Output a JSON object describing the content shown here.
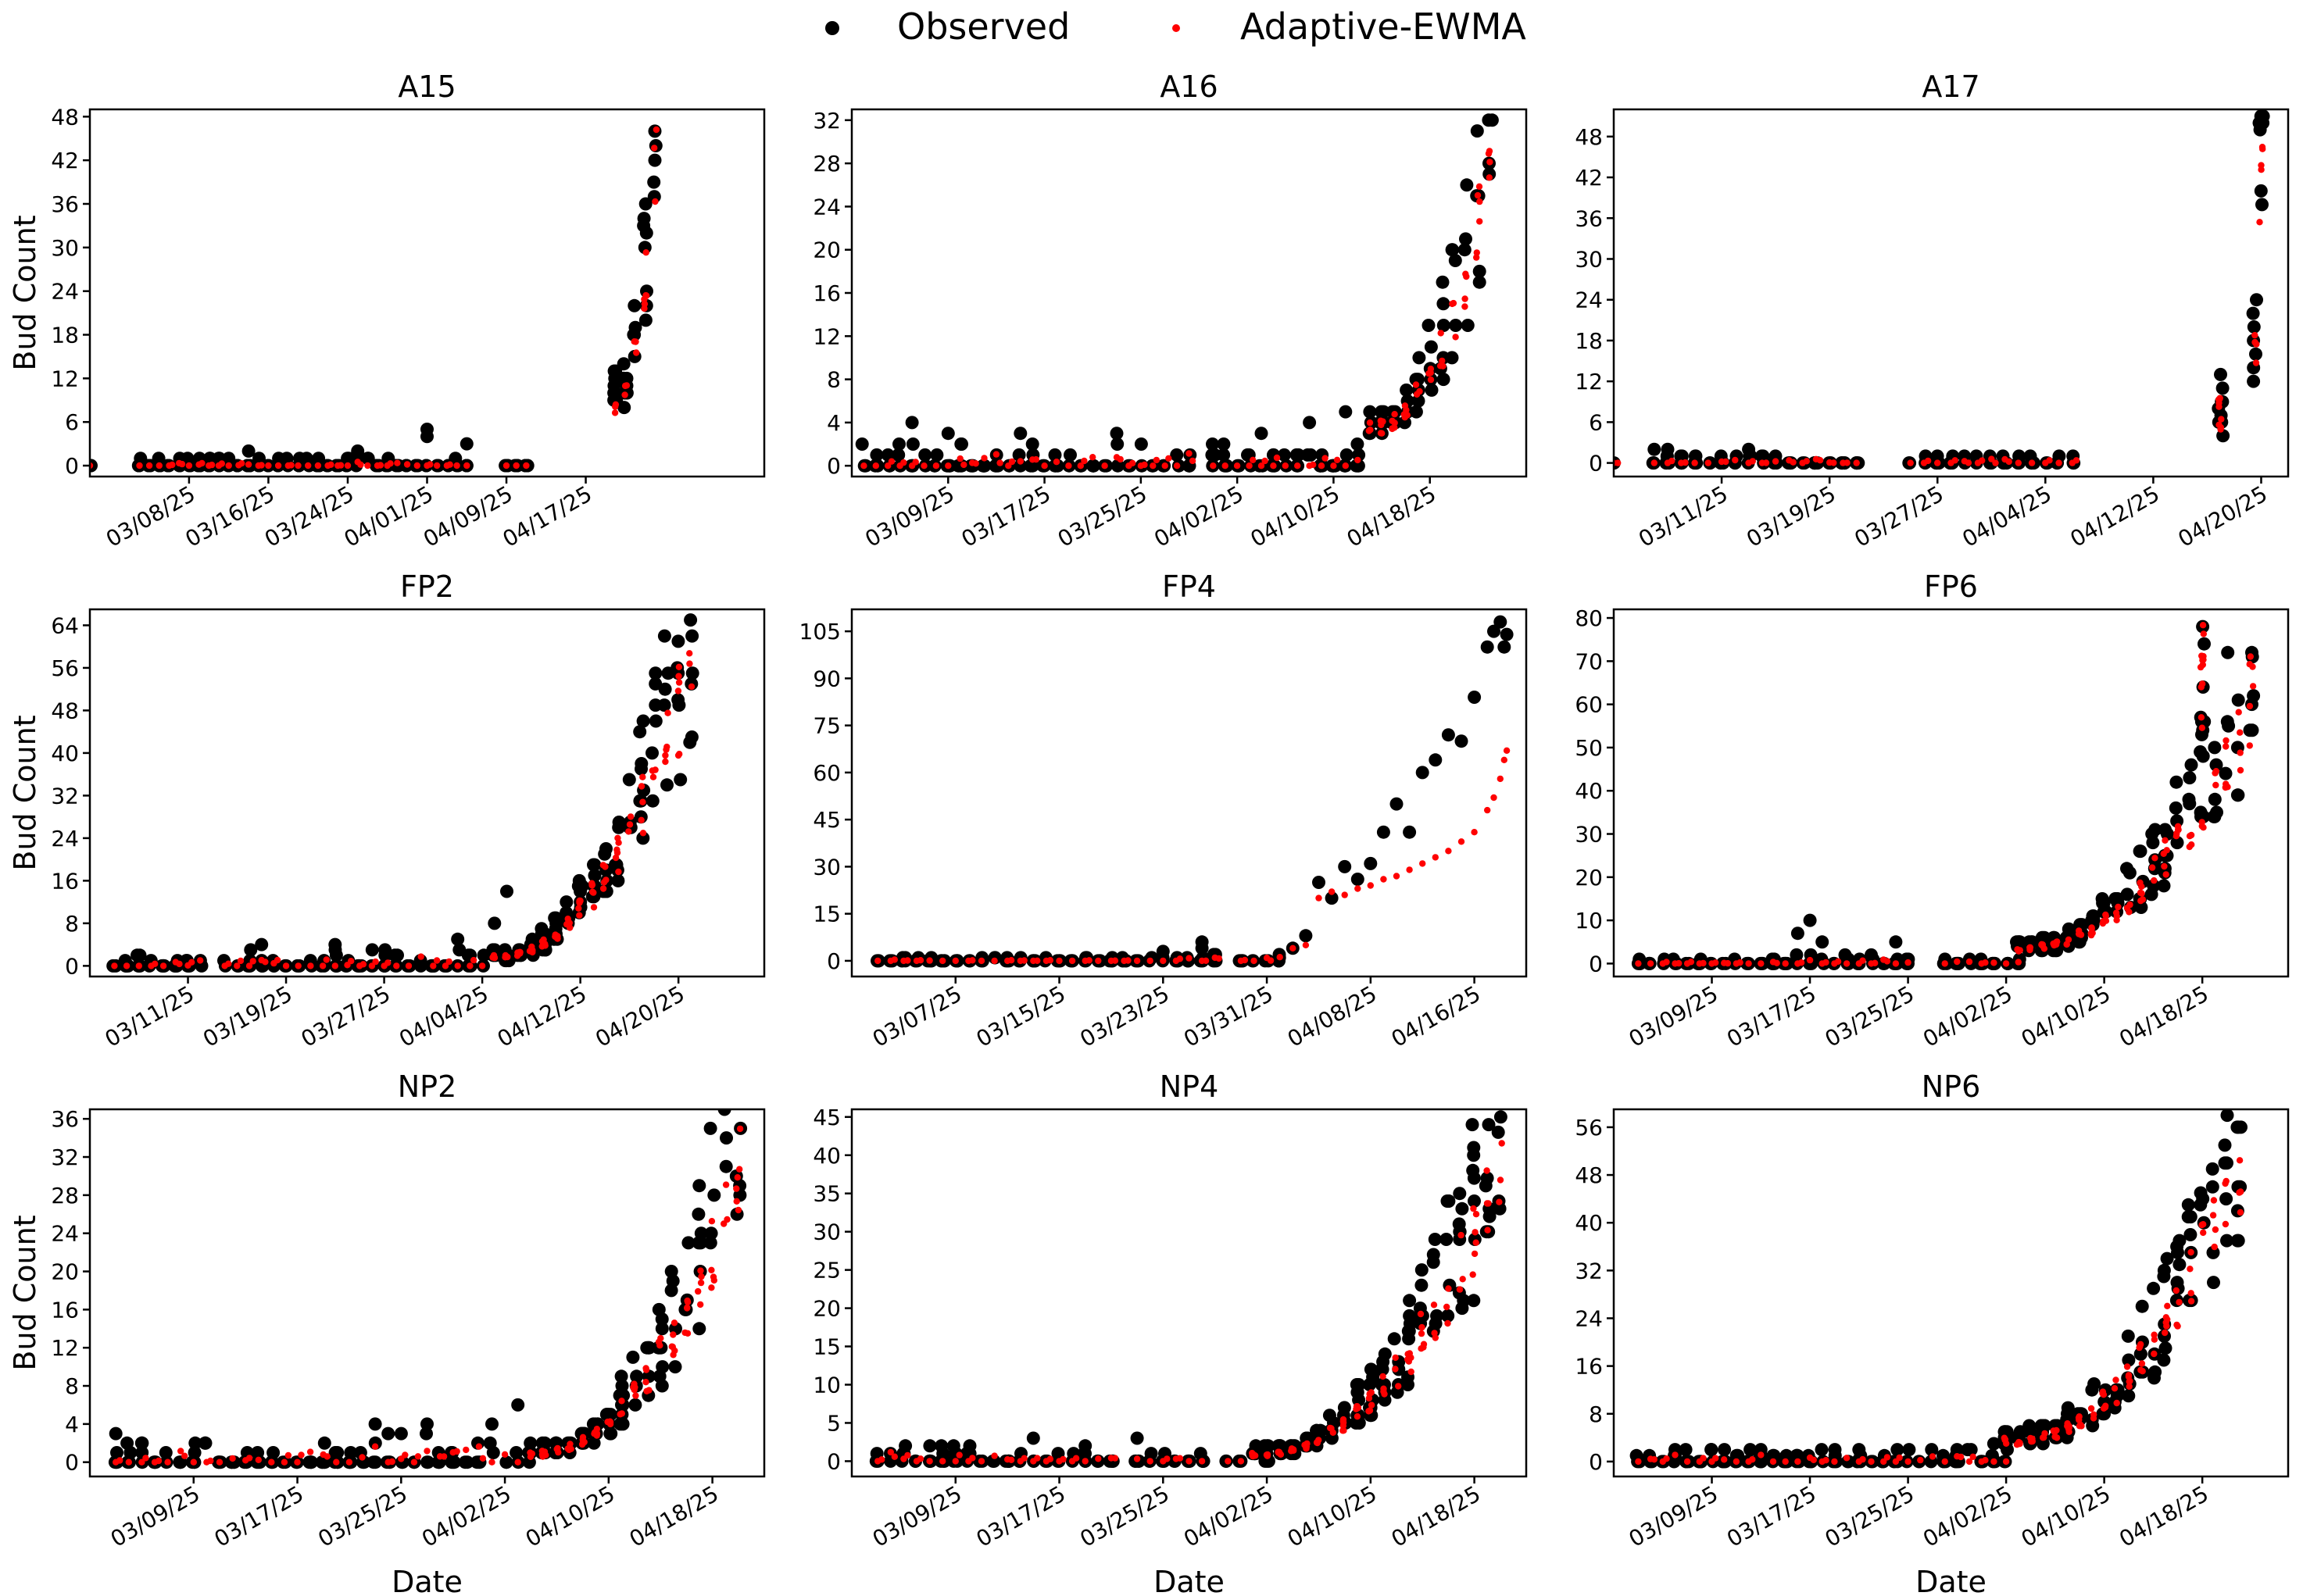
{
  "legend": {
    "observed": "Observed",
    "adaptive": "Adaptive-EWMA"
  },
  "colors": {
    "observed": "#000000",
    "adaptive": "#ff0000"
  },
  "chart_data": [
    {
      "type": "scatter",
      "title": "A15",
      "ylabel": "Bud Count",
      "xlabel": "",
      "ylim": [
        -1.5,
        49
      ],
      "yticks": [
        0,
        6,
        12,
        18,
        24,
        30,
        36,
        42,
        48
      ],
      "xlim": [
        0,
        68
      ],
      "xticks": [
        10,
        18,
        26,
        34,
        42,
        50
      ],
      "xtick_labels": [
        "03/08/25",
        "03/16/25",
        "03/24/25",
        "04/01/25",
        "04/09/25",
        "04/17/25"
      ],
      "segments": [
        [
          0,
          0,
          0,
          0,
          1
        ],
        [
          5,
          33,
          0,
          1,
          0.4
        ],
        [
          34,
          38,
          0,
          1,
          0.3
        ],
        [
          42,
          44,
          0,
          0,
          1
        ]
      ],
      "extra_observed": [
        [
          16,
          2
        ],
        [
          27,
          2
        ],
        [
          34,
          5
        ],
        [
          34,
          4
        ],
        [
          38,
          3
        ]
      ],
      "growth": [
        [
          53,
          57,
          10,
          46
        ]
      ]
    },
    {
      "type": "scatter",
      "title": "A16",
      "ylabel": "",
      "xlabel": "",
      "ylim": [
        -1,
        33
      ],
      "yticks": [
        0,
        4,
        8,
        12,
        16,
        20,
        24,
        28,
        32
      ],
      "xlim": [
        0,
        56
      ],
      "xticks": [
        8,
        16,
        24,
        32,
        40,
        48
      ],
      "xtick_labels": [
        "03/09/25",
        "03/17/25",
        "03/25/25",
        "04/02/25",
        "04/10/25",
        "04/18/25"
      ],
      "segments": [
        [
          1,
          28,
          0,
          2,
          1
        ],
        [
          30,
          42,
          0,
          2,
          1
        ]
      ],
      "extra_observed": [
        [
          5,
          4
        ],
        [
          8,
          3
        ],
        [
          14,
          3
        ],
        [
          22,
          3
        ],
        [
          34,
          3
        ],
        [
          38,
          4
        ],
        [
          41,
          5
        ]
      ],
      "growth": [
        [
          43,
          53,
          4,
          32
        ]
      ]
    },
    {
      "type": "scatter",
      "title": "A17",
      "ylabel": "",
      "xlabel": "",
      "ylim": [
        -2,
        52
      ],
      "yticks": [
        0,
        6,
        12,
        18,
        24,
        30,
        36,
        42,
        48
      ],
      "xlim": [
        0,
        50
      ],
      "xticks": [
        8,
        16,
        24,
        32,
        40,
        48
      ],
      "xtick_labels": [
        "03/11/25",
        "03/19/25",
        "03/27/25",
        "04/04/25",
        "04/12/25",
        "04/20/25"
      ],
      "segments": [
        [
          0,
          0,
          0,
          0,
          0
        ],
        [
          3,
          18,
          0,
          1,
          0.3
        ],
        [
          22,
          34,
          0,
          1,
          0.3
        ]
      ],
      "extra_observed": [
        [
          3,
          2
        ],
        [
          4,
          2
        ],
        [
          10,
          2
        ]
      ],
      "growth": [
        [
          45,
          45,
          7,
          11
        ],
        [
          47.5,
          48,
          19,
          50
        ]
      ]
    },
    {
      "type": "scatter",
      "title": "FP2",
      "ylabel": "Bud Count",
      "xlabel": "",
      "ylim": [
        -2,
        67
      ],
      "yticks": [
        0,
        8,
        16,
        24,
        32,
        40,
        48,
        56,
        64
      ],
      "xlim": [
        0,
        55
      ],
      "xticks": [
        8,
        16,
        24,
        32,
        40,
        48
      ],
      "xtick_labels": [
        "03/11/25",
        "03/19/25",
        "03/27/25",
        "04/04/25",
        "04/12/25",
        "04/20/25"
      ],
      "segments": [
        [
          2,
          9,
          0,
          2,
          1
        ],
        [
          11,
          32,
          0,
          3,
          1
        ]
      ],
      "extra_observed": [
        [
          14,
          4
        ],
        [
          20,
          4
        ],
        [
          30,
          5
        ],
        [
          34,
          14
        ],
        [
          33,
          8
        ]
      ],
      "growth": [
        [
          33,
          49,
          2,
          65
        ]
      ]
    },
    {
      "type": "scatter",
      "title": "FP4",
      "ylabel": "",
      "xlabel": "",
      "ylim": [
        -5,
        112
      ],
      "yticks": [
        0,
        15,
        30,
        45,
        60,
        75,
        90,
        105
      ],
      "xlim": [
        0,
        52
      ],
      "xticks": [
        8,
        16,
        24,
        32,
        40,
        48
      ],
      "xtick_labels": [
        "03/07/25",
        "03/15/25",
        "03/23/25",
        "03/31/25",
        "04/08/25",
        "04/16/25"
      ],
      "segments": [
        [
          2,
          20,
          0,
          1,
          0.8
        ],
        [
          21,
          28,
          0,
          2,
          0.6
        ],
        [
          30,
          33,
          0,
          2,
          0.6
        ]
      ],
      "extra_observed": [
        [
          27,
          4
        ],
        [
          27,
          6
        ],
        [
          24,
          3
        ]
      ],
      "fp4_pairs": [
        [
          34,
          4,
          4
        ],
        [
          35,
          8,
          5
        ],
        [
          36,
          25,
          20
        ],
        [
          37,
          20,
          22
        ],
        [
          38,
          30,
          21
        ],
        [
          39,
          26,
          23
        ],
        [
          40,
          31,
          24
        ],
        [
          41,
          41,
          26
        ],
        [
          42,
          50,
          27
        ],
        [
          43,
          41,
          29
        ],
        [
          44,
          60,
          31
        ],
        [
          45,
          64,
          33
        ],
        [
          46,
          72,
          35
        ],
        [
          47,
          70,
          38
        ],
        [
          48,
          84,
          41
        ],
        [
          49,
          100,
          48
        ],
        [
          49.5,
          105,
          52
        ],
        [
          50,
          108,
          58
        ],
        [
          50.3,
          100,
          64
        ],
        [
          50.5,
          104,
          67
        ]
      ],
      "growth": []
    },
    {
      "type": "scatter",
      "title": "FP6",
      "ylabel": "",
      "xlabel": "",
      "ylim": [
        -3,
        82
      ],
      "yticks": [
        0,
        10,
        20,
        30,
        40,
        50,
        60,
        70,
        80
      ],
      "xlim": [
        0,
        55
      ],
      "xticks": [
        8,
        16,
        24,
        32,
        40,
        48
      ],
      "xtick_labels": [
        "03/09/25",
        "03/17/25",
        "03/25/25",
        "04/02/25",
        "04/10/25",
        "04/18/25"
      ],
      "segments": [
        [
          2,
          14,
          0,
          1,
          0.5
        ],
        [
          15,
          21,
          0,
          2,
          0.5
        ],
        [
          22,
          24,
          0,
          2,
          0.4
        ],
        [
          27,
          33,
          0,
          1,
          0.3
        ]
      ],
      "extra_observed": [
        [
          16,
          10
        ],
        [
          15,
          7
        ],
        [
          17,
          5
        ],
        [
          23,
          5
        ],
        [
          21,
          2
        ]
      ],
      "growth": [
        [
          33,
          52,
          4,
          72
        ],
        [
          48,
          48,
          78,
          78
        ]
      ]
    },
    {
      "type": "scatter",
      "title": "NP2",
      "ylabel": "Bud Count",
      "xlabel": "Date",
      "ylim": [
        -1.5,
        37
      ],
      "yticks": [
        0,
        4,
        8,
        12,
        16,
        20,
        24,
        28,
        32,
        36
      ],
      "xlim": [
        0,
        52
      ],
      "xticks": [
        8,
        16,
        24,
        32,
        40,
        48
      ],
      "xtick_labels": [
        "03/09/25",
        "03/17/25",
        "03/25/25",
        "04/02/25",
        "04/10/25",
        "04/18/25"
      ],
      "segments": [
        [
          2,
          21,
          0,
          2,
          1
        ],
        [
          22,
          33,
          0,
          3,
          1
        ]
      ],
      "extra_observed": [
        [
          2,
          3
        ],
        [
          22,
          4
        ],
        [
          26,
          4
        ],
        [
          23,
          3
        ],
        [
          31,
          4
        ],
        [
          33,
          6
        ]
      ],
      "growth": [
        [
          34,
          50,
          1,
          35
        ]
      ]
    },
    {
      "type": "scatter",
      "title": "NP4",
      "ylabel": "",
      "xlabel": "Date",
      "ylim": [
        -2,
        46
      ],
      "yticks": [
        0,
        5,
        10,
        15,
        20,
        25,
        30,
        35,
        40,
        45
      ],
      "xlim": [
        0,
        52
      ],
      "xticks": [
        8,
        16,
        24,
        32,
        40,
        48
      ],
      "xtick_labels": [
        "03/09/25",
        "03/17/25",
        "03/25/25",
        "04/02/25",
        "04/10/25",
        "04/18/25"
      ],
      "segments": [
        [
          2,
          11,
          0,
          2,
          1
        ],
        [
          12,
          20,
          0,
          1,
          0.4
        ],
        [
          22,
          27,
          0,
          2,
          0.4
        ],
        [
          29,
          31,
          0,
          2,
          0.4
        ]
      ],
      "extra_observed": [
        [
          14,
          3
        ],
        [
          18,
          2
        ],
        [
          22,
          3
        ],
        [
          31,
          1
        ]
      ],
      "growth": [
        [
          31,
          50,
          1,
          43
        ]
      ]
    },
    {
      "type": "scatter",
      "title": "NP6",
      "ylabel": "",
      "xlabel": "Date",
      "ylim": [
        -2.5,
        59
      ],
      "yticks": [
        0,
        8,
        16,
        24,
        32,
        40,
        48,
        56
      ],
      "xlim": [
        0,
        55
      ],
      "xticks": [
        8,
        16,
        24,
        32,
        40,
        48
      ],
      "xtick_labels": [
        "03/09/25",
        "03/17/25",
        "03/25/25",
        "04/02/25",
        "04/10/25",
        "04/18/25"
      ],
      "segments": [
        [
          2,
          32,
          0,
          2,
          1
        ]
      ],
      "extra_observed": [
        [
          5,
          2
        ],
        [
          12,
          2
        ],
        [
          20,
          2
        ],
        [
          28,
          2
        ],
        [
          31,
          3
        ]
      ],
      "growth": [
        [
          32,
          51,
          4,
          56
        ]
      ]
    }
  ]
}
